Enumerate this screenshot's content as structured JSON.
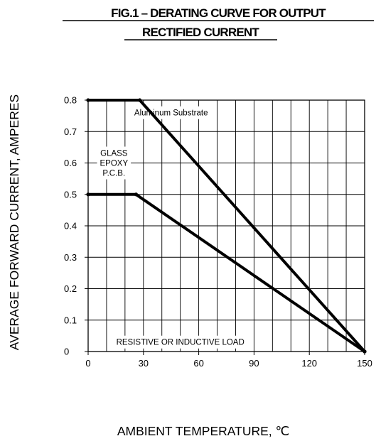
{
  "chart_data": {
    "type": "line",
    "title": [
      "FIG.1 – DERATING CURVE FOR OUTPUT",
      "RECTIFIED CURRENT"
    ],
    "xlabel": "AMBIENT TEMPERATURE, ℃",
    "ylabel": "AVERAGE FORWARD CURRENT,  AMPERES",
    "xlim": [
      0,
      150
    ],
    "ylim": [
      0,
      0.8
    ],
    "x_ticks": [
      0,
      30,
      60,
      90,
      120,
      150
    ],
    "x_tick_labels": [
      "0",
      "30",
      "60",
      "90",
      "120",
      "150"
    ],
    "y_ticks": [
      0,
      0.1,
      0.2,
      0.3,
      0.4,
      0.5,
      0.6,
      0.7,
      0.8
    ],
    "y_tick_labels": [
      "0",
      "0.1",
      "0.2",
      "0.3",
      "0.4",
      "0.5",
      "0.6",
      "0.7",
      "0.8"
    ],
    "x_grid_step": 10,
    "grid": true,
    "series": [
      {
        "points": [
          [
            0,
            0.8
          ],
          [
            28,
            0.8
          ],
          [
            150,
            0
          ]
        ]
      },
      {
        "points": [
          [
            0,
            0.5
          ],
          [
            26,
            0.5
          ],
          [
            150,
            0
          ]
        ]
      }
    ],
    "annotations": [
      {
        "lines": [
          "Aluminum Substrate"
        ],
        "x": 45,
        "y": 0.76
      },
      {
        "lines": [
          "GLASS",
          "EPOXY",
          "P.C.B."
        ],
        "x": 14,
        "y": 0.6
      },
      {
        "lines": [
          "RESISTIVE OR INDUCTIVE LOAD"
        ],
        "x": 50,
        "y": 0.03
      }
    ]
  }
}
